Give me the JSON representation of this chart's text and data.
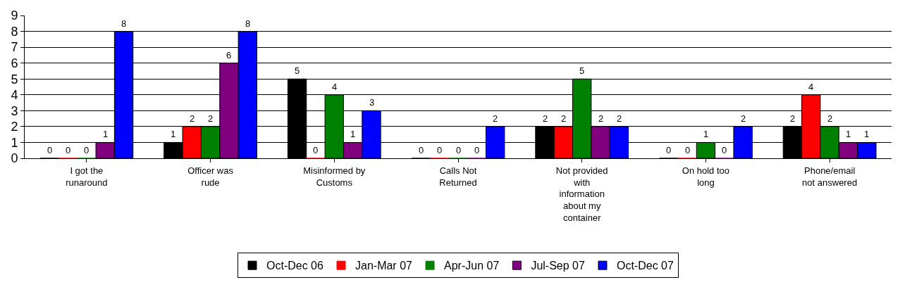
{
  "chart_data": {
    "type": "bar",
    "categories": [
      "I got the runaround",
      "Officer was rude",
      "Misinformed by Customs",
      "Calls Not Returned",
      "Not provided with information about my container",
      "On hold too long",
      "Phone/email not answered"
    ],
    "series": [
      {
        "name": "Oct-Dec 06",
        "color": "#000000",
        "values": [
          0,
          1,
          5,
          0,
          2,
          0,
          2
        ]
      },
      {
        "name": "Jan-Mar 07",
        "color": "#ff0000",
        "values": [
          0,
          2,
          0,
          0,
          2,
          0,
          4
        ]
      },
      {
        "name": "Apr-Jun 07",
        "color": "#008000",
        "values": [
          0,
          2,
          4,
          0,
          5,
          1,
          2
        ]
      },
      {
        "name": "Jul-Sep 07",
        "color": "#800080",
        "values": [
          1,
          6,
          1,
          0,
          2,
          0,
          1
        ]
      },
      {
        "name": "Oct-Dec 07",
        "color": "#0000ff",
        "values": [
          8,
          8,
          3,
          2,
          2,
          2,
          1
        ]
      }
    ],
    "ylim": [
      0,
      9
    ],
    "yticks": [
      0,
      1,
      2,
      3,
      4,
      5,
      6,
      7,
      8,
      9
    ],
    "grid": "y",
    "legend": "bottom",
    "data_labels": true
  }
}
